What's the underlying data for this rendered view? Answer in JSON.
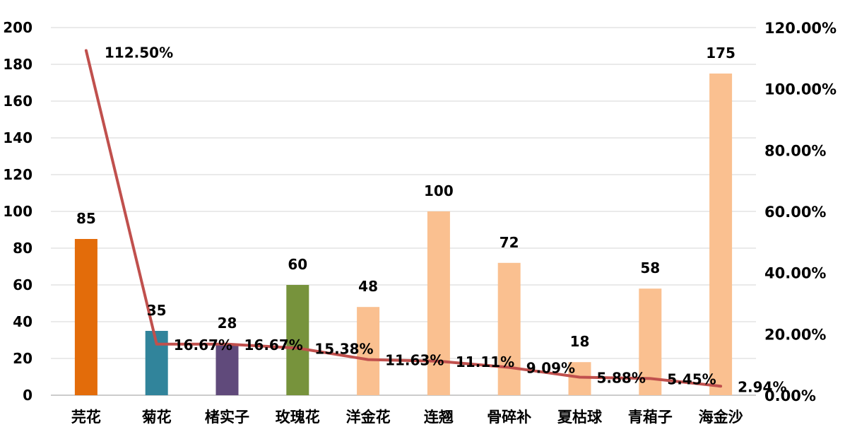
{
  "chart_data": {
    "type": "bar",
    "categories": [
      "芫花",
      "菊花",
      "楮实子",
      "玫瑰花",
      "洋金花",
      "连翘",
      "骨碎补",
      "夏枯球",
      "青葙子",
      "海金沙"
    ],
    "series": [
      {
        "type": "bar",
        "values": [
          85,
          35,
          28,
          60,
          48,
          100,
          72,
          18,
          58,
          175
        ],
        "value_labels": [
          "85",
          "35",
          "28",
          "60",
          "48",
          "100",
          "72",
          "18",
          "58",
          "175"
        ],
        "colors": [
          "#e36c0a",
          "#31849b",
          "#604a7b",
          "#77933c",
          "#fac090",
          "#fac090",
          "#fac090",
          "#fac090",
          "#fac090",
          "#fac090"
        ],
        "axis": "left"
      },
      {
        "type": "line",
        "values": [
          112.5,
          16.67,
          16.67,
          15.38,
          11.63,
          11.11,
          9.09,
          5.88,
          5.45,
          2.94
        ],
        "value_labels": [
          "112.50%",
          "16.67%",
          "16.67%",
          "15.38%",
          "11.63%",
          "11.11%",
          "9.09%",
          "5.88%",
          "5.45%",
          "2.94%"
        ],
        "color": "#c0504d",
        "axis": "right"
      }
    ],
    "y_left": {
      "ylim": [
        0,
        200
      ],
      "ticks": [
        "0",
        "20",
        "40",
        "60",
        "80",
        "100",
        "120",
        "140",
        "160",
        "180",
        "200"
      ]
    },
    "y_right": {
      "ylim": [
        0,
        120
      ],
      "ticks": [
        "0.00%",
        "20.00%",
        "40.00%",
        "60.00%",
        "80.00%",
        "100.00%",
        "120.00%"
      ]
    },
    "grid": true,
    "legend": false,
    "title": "",
    "xlabel": "",
    "ylabel": ""
  }
}
